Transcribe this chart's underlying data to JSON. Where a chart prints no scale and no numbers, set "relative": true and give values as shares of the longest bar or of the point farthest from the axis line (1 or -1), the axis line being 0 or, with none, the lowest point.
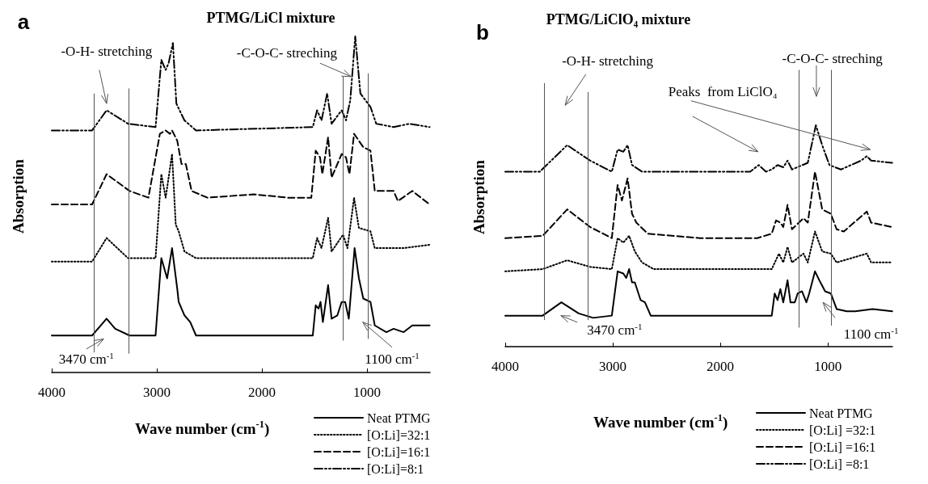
{
  "chart_data": [
    {
      "type": "line",
      "title": "PTMG/LiCl mixture",
      "xlabel": "Wave number (cm$^{-1}$)",
      "ylabel": "Absorption",
      "relative": true,
      "marker": "none",
      "legend": "bottom right",
      "xlim": [
        4000,
        400
      ],
      "xticks": [
        4000,
        3000,
        2000,
        1000
      ],
      "series": [
        {
          "name": "Neat PTMG",
          "color": "#000000",
          "line_style": "solid",
          "x": [
            4000,
            3616,
            3478,
            3396,
            3259,
            3012,
            2957,
            2902,
            2855,
            2806,
            2792,
            2737,
            2682,
            2627,
            2078,
            1516,
            1488,
            1461,
            1442,
            1420,
            1370,
            1337,
            1282,
            1241,
            1208,
            1173,
            1118,
            1077,
            1035,
            967,
            926,
            816,
            747,
            651,
            569,
            404
          ],
          "values": [
            0.11,
            0.11,
            0.16,
            0.13,
            0.11,
            0.11,
            0.34,
            0.28,
            0.37,
            0.25,
            0.21,
            0.17,
            0.15,
            0.11,
            0.11,
            0.11,
            0.2,
            0.19,
            0.21,
            0.15,
            0.26,
            0.16,
            0.17,
            0.21,
            0.21,
            0.16,
            0.37,
            0.28,
            0.22,
            0.21,
            0.14,
            0.12,
            0.13,
            0.12,
            0.14,
            0.14
          ]
        },
        {
          "name": "[O:Li]=32:1",
          "color": "#000000",
          "line_style": "dotted",
          "x": [
            4000,
            3616,
            3478,
            3273,
            3012,
            2957,
            2916,
            2855,
            2820,
            2792,
            2737,
            2627,
            1516,
            1475,
            1433,
            1370,
            1337,
            1228,
            1186,
            1123,
            1077,
            967,
            926,
            651,
            404
          ],
          "values": [
            0.33,
            0.33,
            0.4,
            0.34,
            0.34,
            0.59,
            0.52,
            0.65,
            0.44,
            0.42,
            0.36,
            0.34,
            0.34,
            0.4,
            0.37,
            0.46,
            0.36,
            0.41,
            0.37,
            0.52,
            0.43,
            0.42,
            0.37,
            0.37,
            0.38
          ]
        },
        {
          "name": "[O:Li]=16:1",
          "color": "#000000",
          "line_style": "dashed",
          "x": [
            4000,
            3616,
            3478,
            3259,
            3080,
            2971,
            2916,
            2875,
            2855,
            2806,
            2765,
            2724,
            2669,
            2518,
            2078,
            1749,
            1530,
            1488,
            1447,
            1425,
            1370,
            1337,
            1241,
            1200,
            1167,
            1123,
            1035,
            967,
            926,
            816,
            747,
            706,
            569,
            404
          ],
          "values": [
            0.5,
            0.5,
            0.59,
            0.54,
            0.52,
            0.71,
            0.72,
            0.71,
            0.72,
            0.69,
            0.62,
            0.62,
            0.54,
            0.52,
            0.53,
            0.52,
            0.52,
            0.66,
            0.64,
            0.59,
            0.7,
            0.58,
            0.65,
            0.64,
            0.59,
            0.71,
            0.67,
            0.66,
            0.54,
            0.54,
            0.54,
            0.51,
            0.54,
            0.5
          ]
        },
        {
          "name": "[O:Li]=8:1",
          "color": "#000000",
          "line_style": "dashdotdot",
          "x": [
            4000,
            3616,
            3478,
            3273,
            3012,
            2957,
            2916,
            2888,
            2847,
            2814,
            2737,
            2627,
            1516,
            1475,
            1433,
            1379,
            1337,
            1241,
            1200,
            1159,
            1112,
            1063,
            967,
            912,
            747,
            596,
            404
          ],
          "values": [
            0.72,
            0.72,
            0.78,
            0.74,
            0.73,
            0.93,
            0.9,
            0.92,
            0.98,
            0.8,
            0.75,
            0.72,
            0.73,
            0.78,
            0.75,
            0.83,
            0.74,
            0.78,
            0.75,
            0.81,
            1.0,
            0.83,
            0.79,
            0.74,
            0.73,
            0.74,
            0.73
          ]
        }
      ],
      "ref_lines": [
        {
          "axis": "x",
          "value": 3600
        },
        {
          "axis": "x",
          "value": 3270
        },
        {
          "axis": "x",
          "value": 1230
        },
        {
          "axis": "x",
          "value": 990
        }
      ],
      "annotations": [
        "a",
        "-O-H- stretching",
        "-C-O-C- streching",
        "3470 cm$^{-1}$",
        "1100 cm$^{-1}$"
      ]
    },
    {
      "type": "line",
      "title": "PTMG/LiClO₄ mixture",
      "xlabel": "Wave number (cm$^{-1}$)",
      "ylabel": "Absorption",
      "relative": true,
      "marker": "none",
      "legend": "bottom right",
      "xlim": [
        4000,
        400
      ],
      "xticks": [
        4000,
        3000,
        2000,
        1000
      ],
      "series": [
        {
          "name": "Neat PTMG",
          "color": "#000000",
          "line_style": "solid",
          "x": [
            4000,
            3652,
            3478,
            3317,
            3183,
            3009,
            2955,
            2902,
            2875,
            2848,
            2821,
            2795,
            2741,
            2701,
            2647,
            2085,
            1522,
            1495,
            1468,
            1442,
            1415,
            1375,
            1348,
            1308,
            1281,
            1241,
            1200,
            1174,
            1120,
            1080,
            1026,
            973,
            919,
            825,
            745,
            584,
            402
          ],
          "values": [
            0.14,
            0.14,
            0.2,
            0.15,
            0.13,
            0.14,
            0.34,
            0.33,
            0.31,
            0.35,
            0.29,
            0.29,
            0.21,
            0.2,
            0.14,
            0.14,
            0.14,
            0.24,
            0.21,
            0.26,
            0.2,
            0.3,
            0.2,
            0.2,
            0.24,
            0.25,
            0.2,
            0.24,
            0.34,
            0.3,
            0.25,
            0.24,
            0.17,
            0.16,
            0.16,
            0.17,
            0.16
          ]
        },
        {
          "name": "[O:Li] =32:1",
          "color": "#000000",
          "line_style": "dotted",
          "x": [
            4000,
            3652,
            3424,
            3210,
            3009,
            2955,
            2902,
            2848,
            2795,
            2728,
            2620,
            1656,
            1522,
            1455,
            1415,
            1375,
            1334,
            1227,
            1187,
            1120,
            1053,
            973,
            919,
            638,
            598,
            402
          ],
          "values": [
            0.34,
            0.35,
            0.39,
            0.36,
            0.35,
            0.49,
            0.47,
            0.5,
            0.43,
            0.38,
            0.35,
            0.35,
            0.35,
            0.42,
            0.38,
            0.45,
            0.38,
            0.42,
            0.38,
            0.52,
            0.43,
            0.42,
            0.38,
            0.42,
            0.38,
            0.38
          ]
        },
        {
          "name": "[O:Li] =16:1",
          "color": "#000000",
          "line_style": "dashed",
          "x": [
            4000,
            3652,
            3424,
            3210,
            3009,
            2955,
            2915,
            2862,
            2821,
            2781,
            2674,
            2192,
            1656,
            1522,
            1482,
            1442,
            1415,
            1375,
            1334,
            1227,
            1187,
            1120,
            1053,
            973,
            919,
            852,
            638,
            598,
            402
          ],
          "values": [
            0.49,
            0.5,
            0.62,
            0.54,
            0.49,
            0.73,
            0.66,
            0.76,
            0.6,
            0.56,
            0.51,
            0.49,
            0.49,
            0.51,
            0.57,
            0.56,
            0.54,
            0.64,
            0.53,
            0.58,
            0.56,
            0.79,
            0.62,
            0.6,
            0.53,
            0.52,
            0.61,
            0.56,
            0.54
          ]
        },
        {
          "name": "[O:Li] =8:1",
          "color": "#000000",
          "line_style": "dashdotdot",
          "x": [
            4000,
            3679,
            3424,
            3210,
            3009,
            2955,
            2902,
            2862,
            2821,
            2728,
            2192,
            1723,
            1643,
            1576,
            1522,
            1468,
            1415,
            1375,
            1334,
            1187,
            1112,
            1053,
            986,
            879,
            692,
            638,
            598,
            402
          ],
          "values": [
            0.79,
            0.79,
            0.91,
            0.84,
            0.79,
            0.89,
            0.88,
            0.91,
            0.82,
            0.79,
            0.79,
            0.79,
            0.82,
            0.79,
            0.8,
            0.82,
            0.81,
            0.84,
            0.8,
            0.83,
            1.0,
            0.91,
            0.82,
            0.8,
            0.84,
            0.86,
            0.84,
            0.83
          ]
        }
      ],
      "ref_lines": [
        {
          "axis": "x",
          "value": 3640
        },
        {
          "axis": "x",
          "value": 3230
        },
        {
          "axis": "x",
          "value": 1270
        },
        {
          "axis": "x",
          "value": 970
        }
      ],
      "annotations": [
        "b",
        "-O-H- stretching",
        "-C-O-C- streching",
        "Peaks  from LiClO₄",
        "3470 cm$^{-1}$",
        "1100 cm$^{-1}$"
      ]
    }
  ]
}
